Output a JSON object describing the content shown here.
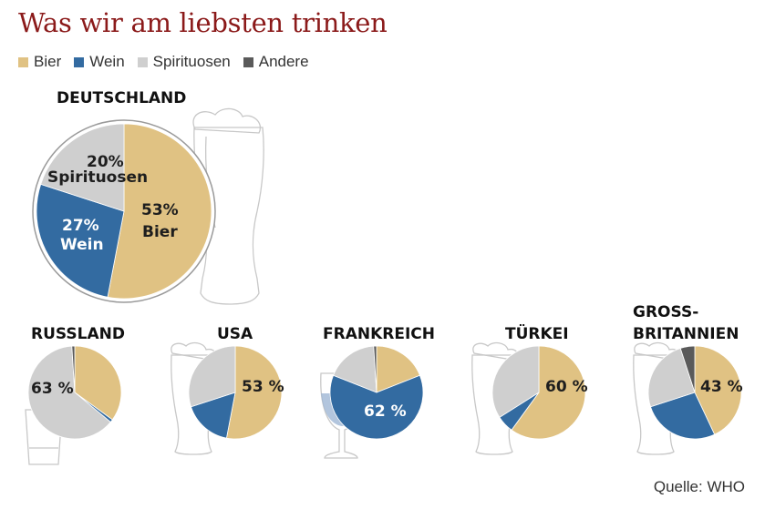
{
  "title": "Was wir am liebsten trinken",
  "source": "Quelle: WHO",
  "colors": {
    "Bier": "#e0c283",
    "Wein": "#336ba1",
    "Spirituosen": "#cfcfcf",
    "Andere": "#5a5a5a"
  },
  "legend": [
    {
      "label": "Bier",
      "color": "#e0c283"
    },
    {
      "label": "Wein",
      "color": "#336ba1"
    },
    {
      "label": "Spirituosen",
      "color": "#cfcfcf"
    },
    {
      "label": "Andere",
      "color": "#5a5a5a"
    }
  ],
  "chart_data": [
    {
      "type": "pie",
      "country": "DEUTSCHLAND",
      "labels": [
        "Bier",
        "Wein",
        "Spirituosen",
        "Andere"
      ],
      "values": [
        53,
        27,
        20,
        0
      ],
      "data_labels": {
        "bier_pct": "53%",
        "bier": "Bier",
        "wein_pct": "27%",
        "wein": "Wein",
        "spirit_pct": "20%",
        "spirit": "Spirituosen"
      }
    },
    {
      "type": "pie",
      "country": "RUSSLAND",
      "labels": [
        "Bier",
        "Wein",
        "Spirituosen",
        "Andere"
      ],
      "values": [
        35,
        1,
        63,
        1
      ],
      "data_label": "63 %"
    },
    {
      "type": "pie",
      "country": "USA",
      "labels": [
        "Bier",
        "Wein",
        "Spirituosen",
        "Andere"
      ],
      "values": [
        53,
        17,
        30,
        0
      ],
      "data_label": "53 %"
    },
    {
      "type": "pie",
      "country": "FRANKREICH",
      "labels": [
        "Bier",
        "Wein",
        "Spirituosen",
        "Andere"
      ],
      "values": [
        19,
        62,
        18,
        1
      ],
      "data_label": "62 %"
    },
    {
      "type": "pie",
      "country": "TÜRKEI",
      "labels": [
        "Bier",
        "Wein",
        "Spirituosen",
        "Andere"
      ],
      "values": [
        60,
        6,
        34,
        0
      ],
      "data_label": "60 %"
    },
    {
      "type": "pie",
      "country": "GROSS-BRITANNIEN",
      "country_lines": [
        "GROSS-",
        "BRITANNIEN"
      ],
      "labels": [
        "Bier",
        "Wein",
        "Spirituosen",
        "Andere"
      ],
      "values": [
        43,
        27,
        25,
        5
      ],
      "data_label": "43 %"
    }
  ]
}
